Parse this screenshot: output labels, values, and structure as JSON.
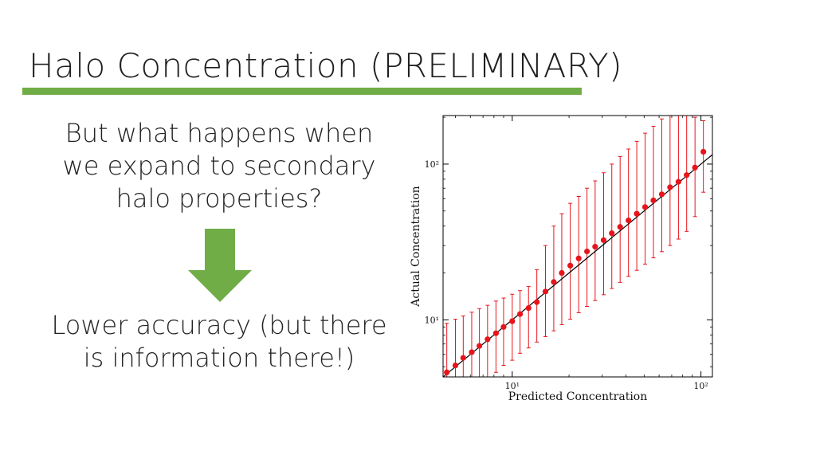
{
  "slide": {
    "title": "Halo Concentration (PRELIMINARY)",
    "question": "But what happens when we expand to secondary halo properties?",
    "answer": "Lower accuracy (but there is information there!)",
    "accent_color": "#70ad47"
  },
  "chart_data": {
    "type": "scatter",
    "xlabel": "Predicted Concentration",
    "ylabel": "Actual Concentration",
    "xscale": "log",
    "yscale": "log",
    "xlim": [
      4.3,
      115
    ],
    "ylim": [
      4.3,
      205
    ],
    "xticks": [
      {
        "value": 10,
        "label": "10¹"
      },
      {
        "value": 100,
        "label": "10²"
      }
    ],
    "yticks": [
      {
        "value": 10,
        "label": "10¹"
      },
      {
        "value": 100,
        "label": "10²"
      }
    ],
    "grid": false,
    "marker_color": "#e8141b",
    "errorbar_color": "#e8141b",
    "line_color": "#000000",
    "reference_line": "y = x",
    "series": [
      {
        "x": [
          4.5,
          5.0,
          5.5,
          6.1,
          6.7,
          7.4,
          8.2,
          9.0,
          10.0,
          11.0,
          12.2,
          13.5,
          15.0,
          16.6,
          18.3,
          20.3,
          22.5,
          24.9,
          27.5,
          30.5,
          33.7,
          37.3,
          41.3,
          45.7,
          50.6,
          56.0,
          62.0,
          68.6,
          76.0,
          84.0,
          93.0,
          103.0
        ],
        "y": [
          4.6,
          5.1,
          5.7,
          6.2,
          6.8,
          7.5,
          8.2,
          9.0,
          9.8,
          10.9,
          11.9,
          13.0,
          15.2,
          17.5,
          20.0,
          22.3,
          24.8,
          27.5,
          29.5,
          32.5,
          36.0,
          39.5,
          43.5,
          48.0,
          53.0,
          58.5,
          64.0,
          71.0,
          77.0,
          85.0,
          95.0,
          120.0
        ],
        "y_low": [
          2.5,
          2.8,
          3.1,
          3.4,
          3.8,
          4.2,
          4.6,
          5.1,
          5.5,
          6.1,
          6.6,
          7.2,
          7.8,
          8.5,
          9.3,
          10.1,
          11.1,
          12.2,
          13.3,
          14.5,
          15.9,
          17.4,
          19.0,
          20.8,
          22.8,
          25.0,
          27.4,
          30.0,
          33.0,
          37.0,
          46.0,
          66.0
        ],
        "y_high": [
          9.5,
          10.1,
          10.6,
          11.2,
          11.8,
          12.4,
          13.2,
          13.8,
          14.6,
          15.4,
          16.4,
          21.0,
          30.0,
          40.0,
          48.0,
          56.0,
          62.0,
          70.0,
          78.0,
          88.0,
          100.0,
          112.0,
          125.0,
          140.0,
          158.0,
          175.0,
          195.0,
          230.0,
          270.0,
          300.0,
          200.0,
          190.0
        ]
      }
    ]
  }
}
